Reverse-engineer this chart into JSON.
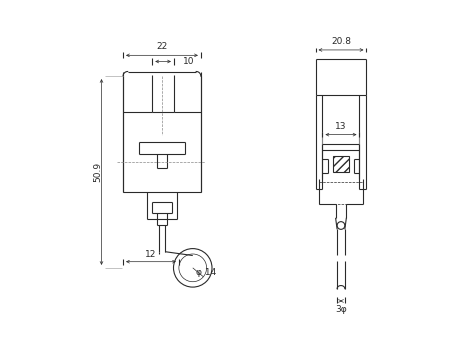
{
  "bg_color": "#ffffff",
  "line_color": "#2a2a2a",
  "lw": 0.8,
  "thin_lw": 0.5,
  "fig_width": 4.7,
  "fig_height": 3.52,
  "dpi": 100,
  "font_size": 6.5,
  "annotations": {
    "dim_22": "22",
    "dim_10": "10",
    "dim_509": "50.9",
    "dim_12": "12",
    "dim_phi14": "φ 14",
    "dim_208": "20.8",
    "dim_13": "13",
    "dim_3phi": "3φ"
  }
}
